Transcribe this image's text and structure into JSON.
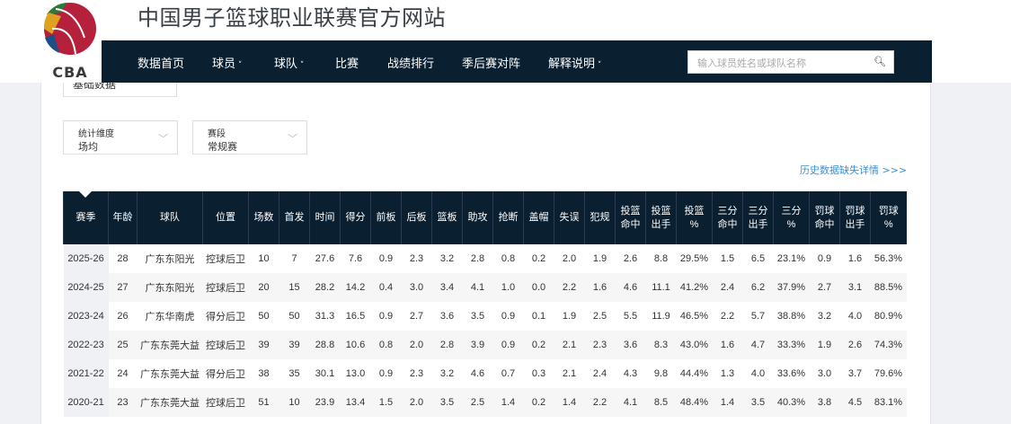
{
  "site": {
    "title": "中国男子篮球职业联赛官方网站",
    "logo_text": "CBA"
  },
  "nav": {
    "items": [
      "数据首页",
      "球员",
      "球队",
      "比赛",
      "战绩排行",
      "季后赛对阵",
      "解释说明"
    ],
    "dropdown": [
      false,
      true,
      true,
      false,
      false,
      false,
      true
    ]
  },
  "search": {
    "placeholder": "输入球员姓名或球队名称",
    "icon": "search-icon"
  },
  "filters": {
    "data_type": "基础数据",
    "dimension_label": "统计维度",
    "dimension_value": "场均",
    "stage_label": "赛段",
    "stage_value": "常规赛"
  },
  "history_link": "历史数据缺失详情 >>>",
  "table": {
    "headers": [
      "赛季",
      "年龄",
      "球队",
      "位置",
      "场数",
      "首发",
      "时间",
      "得分",
      "前板",
      "后板",
      "篮板",
      "助攻",
      "抢断",
      "盖帽",
      "失误",
      "犯规",
      "投篮\n命中",
      "投篮\n出手",
      "投篮\n%",
      "三分\n命中",
      "三分\n出手",
      "三分\n%",
      "罚球\n命中",
      "罚球\n出手",
      "罚球\n%"
    ],
    "rows": [
      [
        "2025-26",
        "28",
        "广东东阳光",
        "控球后卫",
        "10",
        "7",
        "27.6",
        "7.6",
        "0.9",
        "2.3",
        "3.2",
        "2.8",
        "0.8",
        "0.2",
        "2.0",
        "1.9",
        "2.6",
        "8.8",
        "29.5%",
        "1.5",
        "6.5",
        "23.1%",
        "0.9",
        "1.6",
        "56.3%"
      ],
      [
        "2024-25",
        "27",
        "广东东阳光",
        "控球后卫",
        "20",
        "15",
        "28.2",
        "14.2",
        "0.4",
        "3.0",
        "3.4",
        "4.1",
        "1.0",
        "0.0",
        "2.2",
        "1.6",
        "4.6",
        "11.1",
        "41.2%",
        "2.4",
        "6.2",
        "37.9%",
        "2.7",
        "3.1",
        "88.5%"
      ],
      [
        "2023-24",
        "26",
        "广东华南虎",
        "得分后卫",
        "50",
        "50",
        "31.3",
        "16.5",
        "0.9",
        "2.7",
        "3.6",
        "3.5",
        "0.9",
        "0.1",
        "1.9",
        "2.5",
        "5.5",
        "11.9",
        "46.5%",
        "2.2",
        "5.7",
        "38.8%",
        "3.2",
        "4.0",
        "80.9%"
      ],
      [
        "2022-23",
        "25",
        "广东东莞大益",
        "控球后卫",
        "39",
        "39",
        "28.8",
        "10.6",
        "0.8",
        "2.0",
        "2.8",
        "3.9",
        "0.9",
        "0.2",
        "2.1",
        "2.3",
        "3.6",
        "8.3",
        "43.0%",
        "1.6",
        "4.7",
        "33.3%",
        "1.9",
        "2.6",
        "74.3%"
      ],
      [
        "2021-22",
        "24",
        "广东东莞大益",
        "得分后卫",
        "38",
        "35",
        "30.1",
        "13.0",
        "0.9",
        "2.3",
        "3.2",
        "4.6",
        "0.7",
        "0.3",
        "2.1",
        "2.4",
        "4.3",
        "9.8",
        "44.4%",
        "1.3",
        "4.0",
        "33.6%",
        "3.0",
        "3.7",
        "79.6%"
      ],
      [
        "2020-21",
        "23",
        "广东东莞大益",
        "控球后卫",
        "51",
        "10",
        "23.9",
        "13.4",
        "1.5",
        "2.0",
        "3.5",
        "2.5",
        "1.4",
        "0.2",
        "1.4",
        "2.2",
        "4.1",
        "8.5",
        "48.4%",
        "1.4",
        "3.5",
        "40.3%",
        "3.8",
        "4.5",
        "83.1%"
      ]
    ]
  },
  "colors": {
    "nav_bg": "#0a1f30",
    "link": "#3a8fd8"
  }
}
